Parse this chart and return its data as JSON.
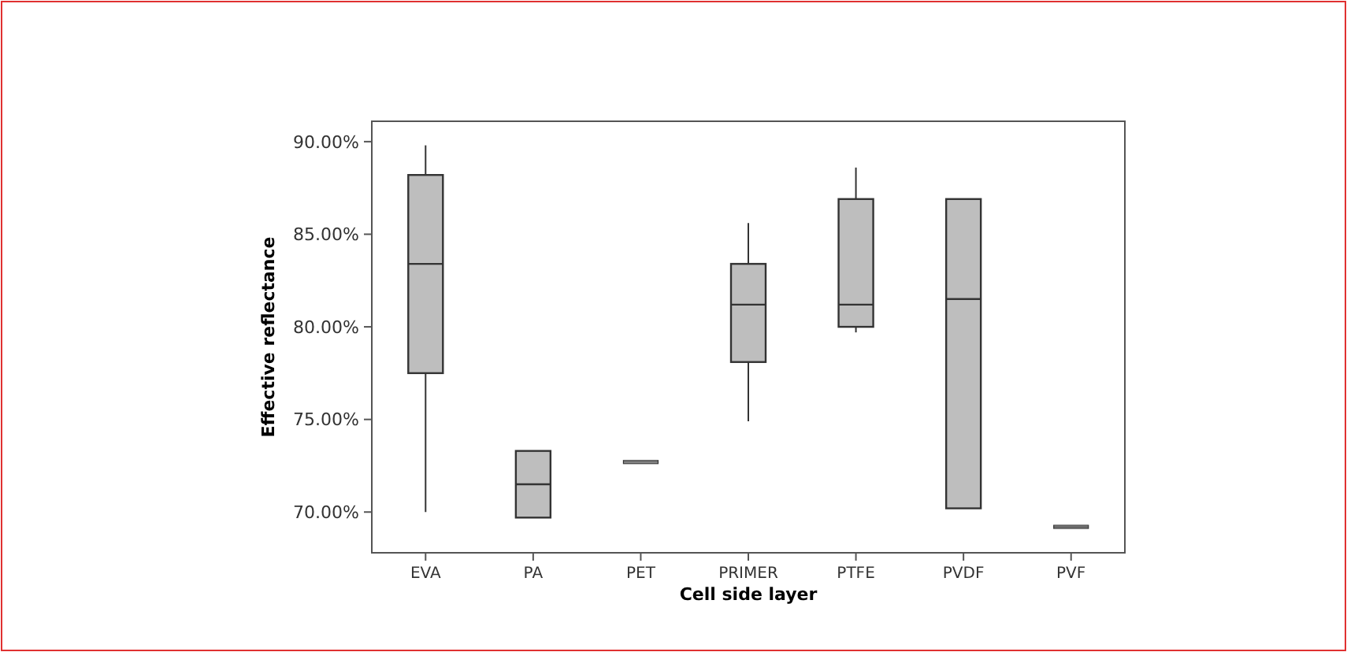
{
  "chart_data": {
    "type": "box",
    "xlabel": "Cell side layer",
    "ylabel": "Effective reflectance",
    "categories": [
      "EVA",
      "PA",
      "PET",
      "PRIMER",
      "PTFE",
      "PVDF",
      "PVF"
    ],
    "boxes": [
      {
        "low": 70.0,
        "q1": 77.5,
        "median": 83.4,
        "q3": 88.2,
        "high": 89.8
      },
      {
        "low": 69.7,
        "q1": 69.7,
        "median": 71.5,
        "q3": 73.3,
        "high": 73.3
      },
      {
        "low": 72.7,
        "q1": 72.7,
        "median": 72.7,
        "q3": 72.7,
        "high": 72.7
      },
      {
        "low": 74.9,
        "q1": 78.1,
        "median": 81.2,
        "q3": 83.4,
        "high": 85.6
      },
      {
        "low": 79.7,
        "q1": 80.0,
        "median": 81.2,
        "q3": 86.9,
        "high": 88.6
      },
      {
        "low": 70.2,
        "q1": 70.2,
        "median": 81.5,
        "q3": 86.9,
        "high": 86.9
      },
      {
        "low": 69.2,
        "q1": 69.2,
        "median": 69.2,
        "q3": 69.2,
        "high": 69.2
      }
    ],
    "color": "#bebebe",
    "ylim": [
      67.8,
      91.1
    ],
    "yticks": [
      {
        "value": 70,
        "label": "70.00%"
      },
      {
        "value": 75,
        "label": "75.00%"
      },
      {
        "value": 80,
        "label": "80.00%"
      },
      {
        "value": 85,
        "label": "85.00%"
      },
      {
        "value": 90,
        "label": "90.00%"
      }
    ],
    "grid": false
  }
}
